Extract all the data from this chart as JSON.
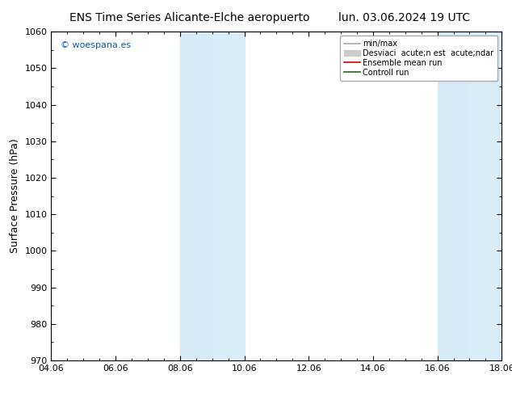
{
  "title_left": "ENS Time Series Alicante-Elche aeropuerto",
  "title_right": "lun. 03.06.2024 19 UTC",
  "ylabel": "Surface Pressure (hPa)",
  "ylim": [
    970,
    1060
  ],
  "yticks": [
    970,
    980,
    990,
    1000,
    1010,
    1020,
    1030,
    1040,
    1050,
    1060
  ],
  "xlim_start": 0,
  "xlim_end": 14,
  "xtick_labels": [
    "04.06",
    "06.06",
    "08.06",
    "10.06",
    "12.06",
    "14.06",
    "16.06",
    "18.06"
  ],
  "xtick_positions": [
    0,
    2,
    4,
    6,
    8,
    10,
    12,
    14
  ],
  "shade_bands": [
    {
      "x_start": 4,
      "x_end": 5,
      "color": "#d8eaf5"
    },
    {
      "x_start": 5,
      "x_end": 6,
      "color": "#daedf7"
    },
    {
      "x_start": 12,
      "x_end": 13,
      "color": "#d8eaf5"
    },
    {
      "x_start": 13,
      "x_end": 14,
      "color": "#daedf7"
    }
  ],
  "legend_entries": [
    {
      "label": "min/max",
      "color": "#aaaaaa",
      "lw": 1.2,
      "type": "line"
    },
    {
      "label": "Desviaci  acute;n est  acute;ndar",
      "color": "#cccccc",
      "lw": 5,
      "type": "bar"
    },
    {
      "label": "Ensemble mean run",
      "color": "#cc0000",
      "lw": 1.2,
      "type": "line"
    },
    {
      "label": "Controll run",
      "color": "#226622",
      "lw": 1.2,
      "type": "line"
    }
  ],
  "watermark": "© woespana.es",
  "watermark_color": "#1155cc",
  "bg_color": "#ffffff",
  "plot_bg_color": "#ffffff",
  "title_fontsize": 10,
  "axis_label_fontsize": 9,
  "tick_fontsize": 8,
  "legend_fontsize": 7
}
